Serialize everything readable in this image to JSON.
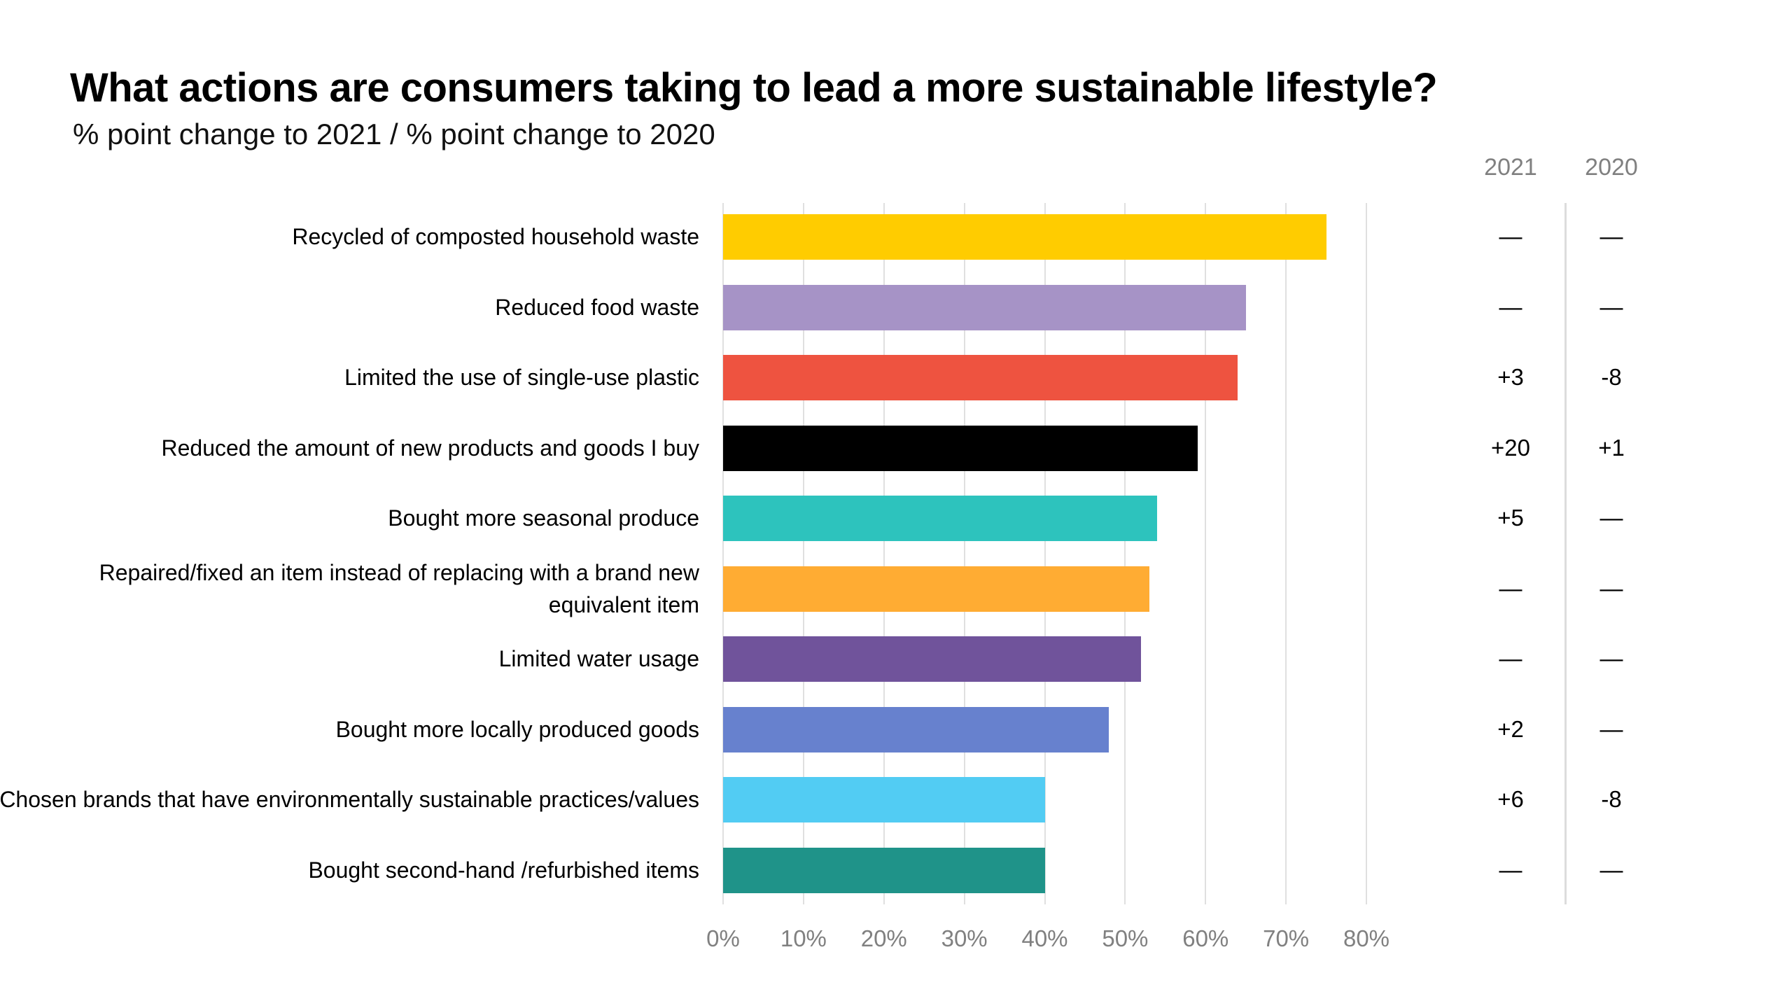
{
  "chart_data": {
    "type": "bar",
    "orientation": "horizontal",
    "title": "What actions are consumers taking to lead a more sustainable lifestyle?",
    "subtitle": "% point change to 2021 / % point change to 2020",
    "xlabel": "",
    "ylabel": "",
    "xlim": [
      0,
      80
    ],
    "grid": true,
    "x_ticks": [
      "0%",
      "10%",
      "20%",
      "30%",
      "40%",
      "50%",
      "60%",
      "70%",
      "80%"
    ],
    "categories": [
      "Recycled of composted household waste",
      "Reduced food waste",
      "Limited the use of single-use plastic",
      "Reduced the amount of new products and goods I buy",
      "Bought more seasonal produce",
      "Repaired/fixed an item instead of replacing with a brand new equivalent item",
      "Limited water usage",
      "Bought more locally produced goods",
      "Chosen brands that have environmentally sustainable practices/values",
      "Bought second-hand /refurbished items"
    ],
    "values": [
      75,
      65,
      64,
      59,
      54,
      53,
      52,
      48,
      40,
      40
    ],
    "colors": [
      "#FFCC00",
      "#A693C6",
      "#EE5340",
      "#000000",
      "#2DC3BD",
      "#FFAC33",
      "#70539B",
      "#6781CE",
      "#52CCF3",
      "#1F9389"
    ],
    "change_columns": {
      "headers": [
        "2021",
        "2020"
      ],
      "change_2021": [
        "—",
        "—",
        "+3",
        "+20",
        "+5",
        "—",
        "—",
        "+2",
        "+6",
        "—"
      ],
      "change_2020": [
        "—",
        "—",
        "-8",
        "+1",
        "—",
        "—",
        "—",
        "—",
        "-8",
        "—"
      ]
    }
  }
}
